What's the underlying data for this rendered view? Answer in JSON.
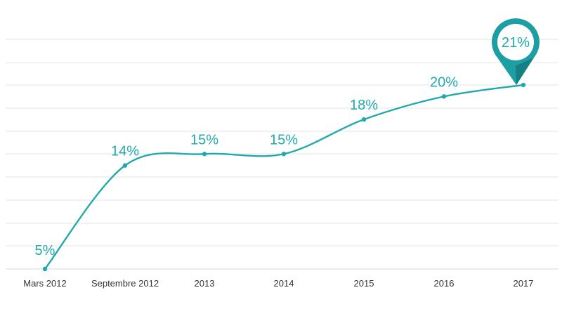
{
  "chart_data": {
    "type": "line",
    "categories": [
      "Mars 2012",
      "Septembre 2012",
      "2013",
      "2014",
      "2015",
      "2016",
      "2017"
    ],
    "series": [
      {
        "values": [
          5,
          14,
          15,
          15,
          18,
          20,
          21
        ]
      }
    ],
    "data_labels": [
      "5%",
      "14%",
      "15%",
      "15%",
      "18%",
      "20%",
      ""
    ],
    "callout": {
      "label": "21%",
      "category": "2017",
      "value": 21
    },
    "ylim": [
      5,
      25
    ],
    "grid": true,
    "title": "",
    "xlabel": "",
    "ylabel": ""
  },
  "colors": {
    "line": "#22a9ad",
    "label": "#22a9ad",
    "callout_ring": "#1c9ea2",
    "callout_dark": "#157f83",
    "callout_inner": "#ffffff"
  }
}
